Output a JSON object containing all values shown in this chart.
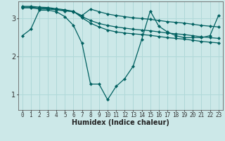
{
  "xlabel": "Humidex (Indice chaleur)",
  "bg_color": "#cce8e8",
  "line_color": "#006060",
  "grid_color": "#b0d8d8",
  "xmin": -0.5,
  "xmax": 23.5,
  "ymin": 0.6,
  "ymax": 3.45,
  "yticks": [
    1,
    2,
    3
  ],
  "xticks": [
    0,
    1,
    2,
    3,
    4,
    5,
    6,
    7,
    8,
    9,
    10,
    11,
    12,
    13,
    14,
    15,
    16,
    17,
    18,
    19,
    20,
    21,
    22,
    23
  ],
  "series": [
    [
      2.55,
      2.72,
      3.22,
      3.22,
      3.18,
      3.05,
      2.82,
      2.35,
      1.28,
      1.28,
      0.87,
      1.22,
      1.42,
      1.75,
      2.45,
      3.2,
      2.8,
      2.65,
      2.55,
      2.5,
      2.5,
      2.5,
      2.55,
      3.08
    ],
    [
      3.28,
      3.28,
      3.25,
      3.25,
      3.23,
      3.2,
      3.18,
      3.08,
      3.25,
      3.18,
      3.12,
      3.08,
      3.05,
      3.02,
      3.0,
      2.98,
      2.95,
      2.92,
      2.9,
      2.88,
      2.85,
      2.82,
      2.8,
      2.78
    ],
    [
      3.32,
      3.32,
      3.3,
      3.29,
      3.26,
      3.23,
      3.19,
      3.02,
      2.88,
      2.78,
      2.7,
      2.65,
      2.62,
      2.6,
      2.58,
      2.56,
      2.53,
      2.5,
      2.48,
      2.46,
      2.43,
      2.4,
      2.38,
      2.36
    ],
    [
      3.3,
      3.3,
      3.28,
      3.27,
      3.24,
      3.21,
      3.19,
      3.05,
      2.95,
      2.87,
      2.82,
      2.78,
      2.75,
      2.72,
      2.7,
      2.68,
      2.65,
      2.62,
      2.6,
      2.58,
      2.55,
      2.52,
      2.5,
      2.48
    ]
  ],
  "marker": "D",
  "markersize": 2.2,
  "linewidth": 0.9,
  "xlabel_fontsize": 7,
  "tick_fontsize": 5.5,
  "ytick_fontsize": 7
}
